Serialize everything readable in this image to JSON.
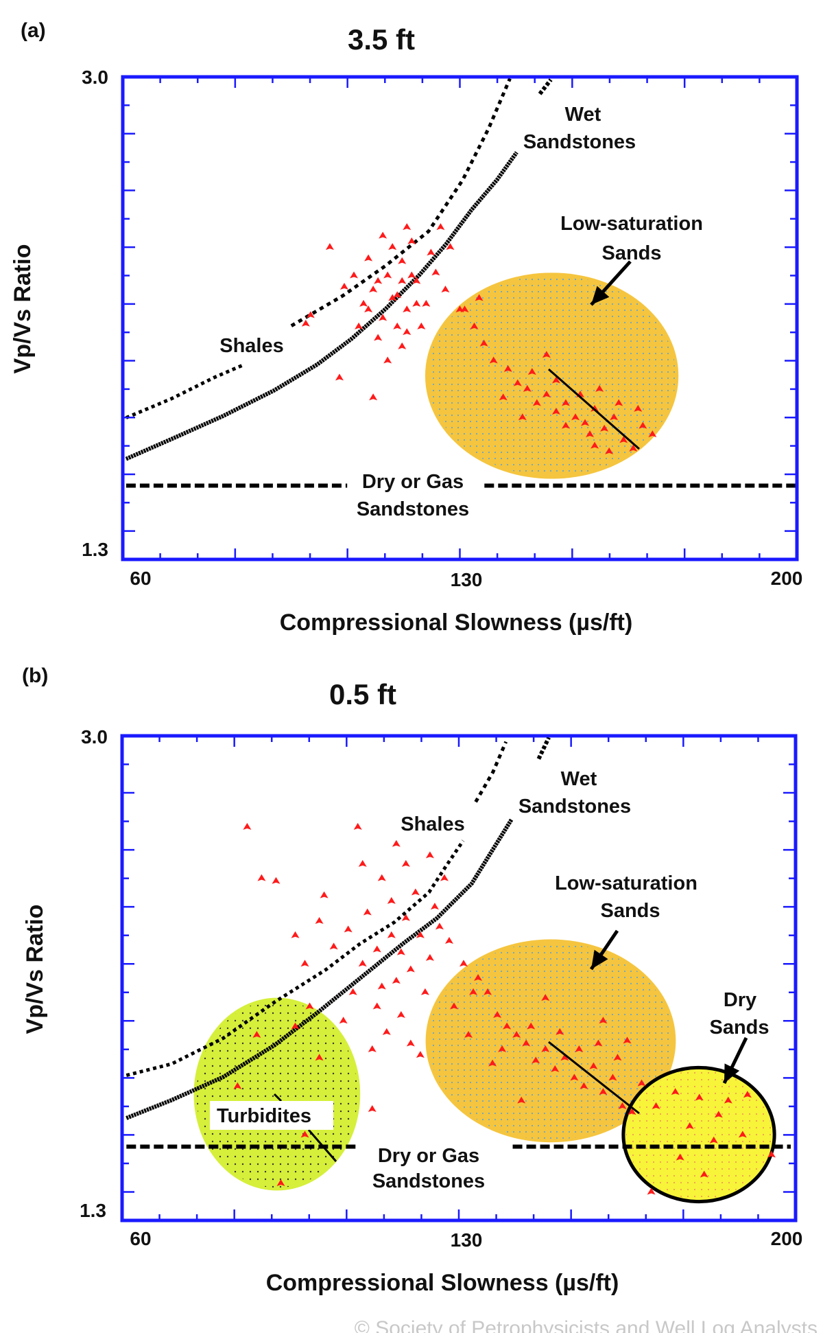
{
  "colors": {
    "axis": "#1a1aff",
    "points": "#ff1a1a",
    "low_saturation": "#f5c53f",
    "turbidites": "#d6ef3a",
    "dry_sands": "#f7f43a",
    "curves": "#000000"
  },
  "watermark": "© Society of Petrophysicists and Well Log Analysts",
  "chart_data": [
    {
      "type": "scatter",
      "panel": "(a)",
      "title": "3.5 ft",
      "xlabel": "Compressional Slowness (µs/ft)",
      "ylabel": "Vp/Vs Ratio",
      "xlim": [
        60,
        200
      ],
      "ylim": [
        1.3,
        3.0
      ],
      "xticks": [
        "60",
        "130",
        "200"
      ],
      "yticks": [
        "3.0",
        "1.3"
      ],
      "grid": false,
      "annotations": {
        "wet1": "Wet",
        "wet2": "Sandstones",
        "low1": "Low-saturation",
        "low2": "Sands",
        "shales": "Shales",
        "dry1": "Dry or Gas",
        "dry2": "Sandstones"
      },
      "curves": {
        "wet_sandstones": [
          [
            60.7,
            1.654
          ],
          [
            70.1,
            1.724
          ],
          [
            80.8,
            1.805
          ],
          [
            91.5,
            1.896
          ],
          [
            100.4,
            1.987
          ],
          [
            107.5,
            2.077
          ],
          [
            114.6,
            2.183
          ],
          [
            121.7,
            2.304
          ],
          [
            127.1,
            2.41
          ],
          [
            132.4,
            2.531
          ],
          [
            137.7,
            2.637
          ],
          [
            141.8,
            2.734
          ]
        ],
        "wet_sandstones_top": [
          [
            146.6,
            2.94
          ],
          [
            148.9,
            2.99
          ]
        ],
        "shales": [
          [
            60.7,
            1.799
          ],
          [
            70.1,
            1.866
          ],
          [
            79.0,
            1.941
          ],
          [
            85.3,
            1.987
          ]
        ],
        "shales_upper": [
          [
            95.0,
            2.123
          ],
          [
            105.7,
            2.229
          ],
          [
            114.6,
            2.335
          ],
          [
            123.5,
            2.456
          ],
          [
            130.6,
            2.637
          ],
          [
            136.0,
            2.819
          ],
          [
            140.4,
            2.994
          ]
        ],
        "dry_gas_line": {
          "y": 1.56,
          "segments": [
            [
              60.7,
              106.6
            ],
            [
              135.1,
              200
            ]
          ]
        }
      },
      "regions": [
        {
          "name": "Low-saturation Sands",
          "cx": 149.1,
          "cy": 1.947,
          "rx": 26.3,
          "ry": 0.363,
          "color": "#f5c53f"
        }
      ],
      "points": [
        [
          117,
          2.23
        ],
        [
          115,
          2.3
        ],
        [
          119,
          2.18
        ],
        [
          112,
          2.25
        ],
        [
          121,
          2.28
        ],
        [
          118,
          2.35
        ],
        [
          114,
          2.15
        ],
        [
          110,
          2.2
        ],
        [
          123,
          2.2
        ],
        [
          116,
          2.4
        ],
        [
          120,
          2.42
        ],
        [
          108,
          2.3
        ],
        [
          125,
          2.31
        ],
        [
          113,
          2.08
        ],
        [
          118,
          2.05
        ],
        [
          122,
          2.12
        ],
        [
          111,
          2.36
        ],
        [
          106,
          2.26
        ],
        [
          127,
          2.25
        ],
        [
          119,
          2.47
        ],
        [
          115,
          2.0
        ],
        [
          109,
          2.12
        ],
        [
          124,
          2.38
        ],
        [
          117,
          2.12
        ],
        [
          113,
          2.28
        ],
        [
          120,
          2.3
        ],
        [
          116,
          2.22
        ],
        [
          121,
          2.2
        ],
        [
          103,
          2.4
        ],
        [
          98,
          2.13
        ],
        [
          99,
          2.16
        ],
        [
          128,
          2.4
        ],
        [
          130,
          2.18
        ],
        [
          105,
          1.94
        ],
        [
          112,
          1.87
        ],
        [
          126,
          2.47
        ],
        [
          114,
          2.44
        ],
        [
          118,
          2.28
        ],
        [
          111,
          2.18
        ],
        [
          119,
          2.1
        ],
        [
          131,
          2.18
        ],
        [
          133,
          2.12
        ],
        [
          135,
          2.06
        ],
        [
          137,
          2.0
        ],
        [
          140,
          1.97
        ],
        [
          142,
          1.92
        ],
        [
          139,
          1.87
        ],
        [
          144,
          1.9
        ],
        [
          146,
          1.85
        ],
        [
          148,
          1.88
        ],
        [
          150,
          1.82
        ],
        [
          152,
          1.85
        ],
        [
          154,
          1.8
        ],
        [
          156,
          1.78
        ],
        [
          158,
          1.83
        ],
        [
          160,
          1.76
        ],
        [
          162,
          1.8
        ],
        [
          164,
          1.72
        ],
        [
          166,
          1.69
        ],
        [
          168,
          1.77
        ],
        [
          145,
          1.96
        ],
        [
          150,
          1.93
        ],
        [
          155,
          1.88
        ],
        [
          159,
          1.9
        ],
        [
          163,
          1.85
        ],
        [
          167,
          1.83
        ],
        [
          170,
          1.74
        ],
        [
          143,
          1.8
        ],
        [
          152,
          1.77
        ],
        [
          158,
          1.7
        ],
        [
          148,
          2.02
        ],
        [
          134,
          2.22
        ],
        [
          161,
          1.68
        ],
        [
          157,
          1.74
        ]
      ]
    },
    {
      "type": "scatter",
      "panel": "(b)",
      "title": "0.5 ft",
      "xlabel": "Compressional Slowness (µs/ft)",
      "ylabel": "Vp/Vs Ratio",
      "xlim": [
        60,
        200
      ],
      "ylim": [
        1.3,
        3.0
      ],
      "xticks": [
        "60",
        "130",
        "200"
      ],
      "yticks": [
        "3.0",
        "1.3"
      ],
      "grid": false,
      "annotations": {
        "wet1": "Wet",
        "wet2": "Sandstones",
        "shales": "Shales",
        "low1": "Low-saturation",
        "low2": "Sands",
        "drys1": "Dry",
        "drys2": "Sands",
        "turb": "Turbidites",
        "dry1": "Dry or Gas",
        "dry2": "Sandstones"
      },
      "curves": {
        "wet_sandstones": [
          [
            60.9,
            1.659
          ],
          [
            70.3,
            1.722
          ],
          [
            81.0,
            1.803
          ],
          [
            91.7,
            1.915
          ],
          [
            100.6,
            2.029
          ],
          [
            109.5,
            2.15
          ],
          [
            118.4,
            2.271
          ],
          [
            125.5,
            2.361
          ],
          [
            132.7,
            2.482
          ],
          [
            137.1,
            2.602
          ],
          [
            141.0,
            2.708
          ]
        ],
        "wet_sandstones_top": [
          [
            146.6,
            2.919
          ],
          [
            148.7,
            2.994
          ]
        ],
        "shales": [
          [
            60.9,
            1.809
          ],
          [
            70.3,
            1.849
          ],
          [
            81.0,
            1.939
          ],
          [
            91.7,
            2.066
          ],
          [
            102.4,
            2.18
          ],
          [
            109.5,
            2.271
          ],
          [
            116.6,
            2.346
          ],
          [
            123.8,
            2.451
          ],
          [
            127.3,
            2.542
          ],
          [
            130.9,
            2.632
          ]
        ],
        "shales_upper": [
          [
            133.5,
            2.768
          ],
          [
            137.1,
            2.873
          ],
          [
            139.8,
            2.979
          ]
        ],
        "dry_gas_line": {
          "y": 1.559,
          "segments": [
            [
              60.9,
              108.6
            ],
            [
              141.2,
              199
            ]
          ]
        }
      },
      "regions": [
        {
          "name": "Turbidites",
          "cx": 92.2,
          "cy": 1.743,
          "rx": 17.3,
          "ry": 0.338,
          "color": "#d6ef3a"
        },
        {
          "name": "Low-saturation Sands",
          "cx": 149.1,
          "cy": 1.93,
          "rx": 26.0,
          "ry": 0.356,
          "color": "#f5c53f"
        },
        {
          "name": "Dry Sands",
          "cx": 179.9,
          "cy": 1.601,
          "rx": 15.7,
          "ry": 0.235,
          "color": "#f7f43a"
        }
      ],
      "points": [
        [
          86,
          2.68
        ],
        [
          109,
          2.68
        ],
        [
          89,
          2.5
        ],
        [
          92,
          2.49
        ],
        [
          112,
          1.69
        ],
        [
          118,
          2.24
        ],
        [
          116,
          2.3
        ],
        [
          120,
          2.18
        ],
        [
          113,
          2.25
        ],
        [
          122,
          2.3
        ],
        [
          119,
          2.36
        ],
        [
          114,
          2.12
        ],
        [
          110,
          2.2
        ],
        [
          124,
          2.22
        ],
        [
          116,
          2.42
        ],
        [
          121,
          2.45
        ],
        [
          107,
          2.32
        ],
        [
          126,
          2.33
        ],
        [
          113,
          2.05
        ],
        [
          118,
          2.02
        ],
        [
          123,
          2.1
        ],
        [
          111,
          2.38
        ],
        [
          104,
          2.26
        ],
        [
          128,
          2.28
        ],
        [
          119,
          2.55
        ],
        [
          115,
          1.96
        ],
        [
          108,
          2.1
        ],
        [
          125,
          2.4
        ],
        [
          117,
          2.14
        ],
        [
          101,
          2.35
        ],
        [
          98,
          2.2
        ],
        [
          102,
          2.44
        ],
        [
          127,
          2.5
        ],
        [
          131,
          2.2
        ],
        [
          106,
          2.0
        ],
        [
          112,
          1.9
        ],
        [
          124,
          2.58
        ],
        [
          114,
          2.5
        ],
        [
          120,
          1.92
        ],
        [
          110,
          2.55
        ],
        [
          99,
          2.05
        ],
        [
          96,
          2.3
        ],
        [
          129,
          2.05
        ],
        [
          133,
          2.1
        ],
        [
          117,
          2.62
        ],
        [
          122,
          1.88
        ],
        [
          134,
          2.15
        ],
        [
          136,
          2.1
        ],
        [
          138,
          2.02
        ],
        [
          140,
          1.98
        ],
        [
          142,
          1.95
        ],
        [
          139,
          1.9
        ],
        [
          144,
          1.92
        ],
        [
          146,
          1.86
        ],
        [
          148,
          1.9
        ],
        [
          150,
          1.83
        ],
        [
          152,
          1.87
        ],
        [
          154,
          1.8
        ],
        [
          156,
          1.77
        ],
        [
          158,
          1.84
        ],
        [
          160,
          1.75
        ],
        [
          162,
          1.8
        ],
        [
          164,
          1.7
        ],
        [
          166,
          1.68
        ],
        [
          168,
          1.78
        ],
        [
          145,
          1.98
        ],
        [
          151,
          1.96
        ],
        [
          155,
          1.9
        ],
        [
          159,
          1.92
        ],
        [
          163,
          1.87
        ],
        [
          132,
          1.95
        ],
        [
          137,
          1.85
        ],
        [
          148,
          2.08
        ],
        [
          160,
          2.0
        ],
        [
          143,
          1.72
        ],
        [
          165,
          1.93
        ],
        [
          88,
          1.95
        ],
        [
          96,
          1.98
        ],
        [
          101,
          1.87
        ],
        [
          84,
          1.77
        ],
        [
          93,
          1.68
        ],
        [
          98,
          1.6
        ],
        [
          93,
          1.43
        ],
        [
          171,
          1.7
        ],
        [
          175,
          1.75
        ],
        [
          180,
          1.73
        ],
        [
          184,
          1.67
        ],
        [
          186,
          1.72
        ],
        [
          178,
          1.63
        ],
        [
          183,
          1.58
        ],
        [
          189,
          1.6
        ],
        [
          176,
          1.52
        ],
        [
          181,
          1.46
        ],
        [
          170,
          1.4
        ],
        [
          195,
          1.53
        ],
        [
          190,
          1.74
        ]
      ]
    }
  ]
}
